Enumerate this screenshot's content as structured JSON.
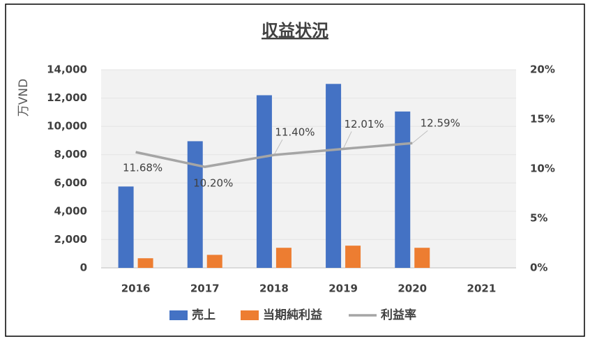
{
  "chart_data": {
    "type": "bar",
    "title": "収益状況",
    "y_label": "万VND",
    "categories": [
      "2016",
      "2017",
      "2018",
      "2019",
      "2020",
      "2021"
    ],
    "series": [
      {
        "name": "売上",
        "type": "bar",
        "color": "#4472c4",
        "values": [
          5750,
          8950,
          12200,
          13000,
          11050,
          null
        ]
      },
      {
        "name": "当期純利益",
        "type": "bar",
        "color": "#ed7d31",
        "values": [
          680,
          920,
          1420,
          1570,
          1420,
          null
        ]
      },
      {
        "name": "利益率",
        "type": "line",
        "axis": "y2",
        "color": "#a5a5a5",
        "values": [
          11.68,
          10.2,
          11.4,
          12.01,
          12.59,
          null
        ],
        "value_labels": [
          "11.68%",
          "10.20%",
          "11.40%",
          "12.01%",
          "12.59%",
          null
        ]
      }
    ],
    "ylim": [
      0,
      14000
    ],
    "yticks": [
      0,
      {
        "value": 2000,
        "label": "2,000"
      },
      {
        "value": 4000,
        "label": "4,000"
      },
      {
        "value": 6000,
        "label": "6,000"
      },
      {
        "value": 8000,
        "label": "8,000"
      },
      {
        "value": 10000,
        "label": "10,000"
      },
      {
        "value": 12000,
        "label": "12,000"
      },
      {
        "value": 14000,
        "label": "14,000"
      }
    ],
    "y2lim": [
      0,
      20
    ],
    "y2ticks": [
      {
        "value": 0,
        "label": "0%"
      },
      {
        "value": 5,
        "label": "5%"
      },
      {
        "value": 10,
        "label": "10%"
      },
      {
        "value": 15,
        "label": "15%"
      },
      {
        "value": 20,
        "label": "20%"
      }
    ],
    "grid": true,
    "legend": "bottom"
  }
}
